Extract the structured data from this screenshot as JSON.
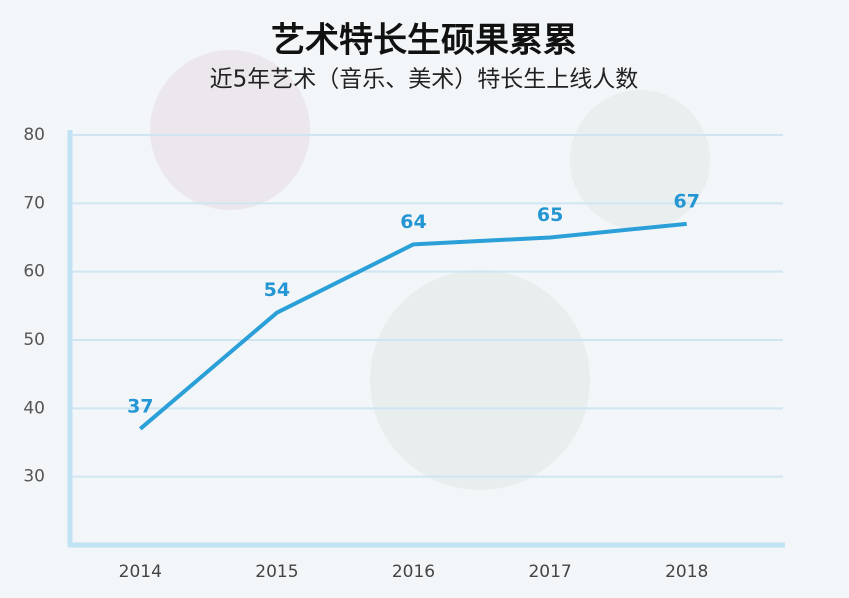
{
  "chart_data": {
    "type": "line",
    "title": "艺术特长生硕果累累",
    "subtitle": "近5年艺术（音乐、美术）特长生上线人数",
    "categories": [
      "2014",
      "2015",
      "2016",
      "2017",
      "2018"
    ],
    "values": [
      37,
      54,
      64,
      65,
      67
    ],
    "color": "#2a9fd8",
    "ylim": [
      20,
      80
    ],
    "yticks": [
      30,
      40,
      50,
      60,
      70,
      80
    ],
    "grid": true
  }
}
